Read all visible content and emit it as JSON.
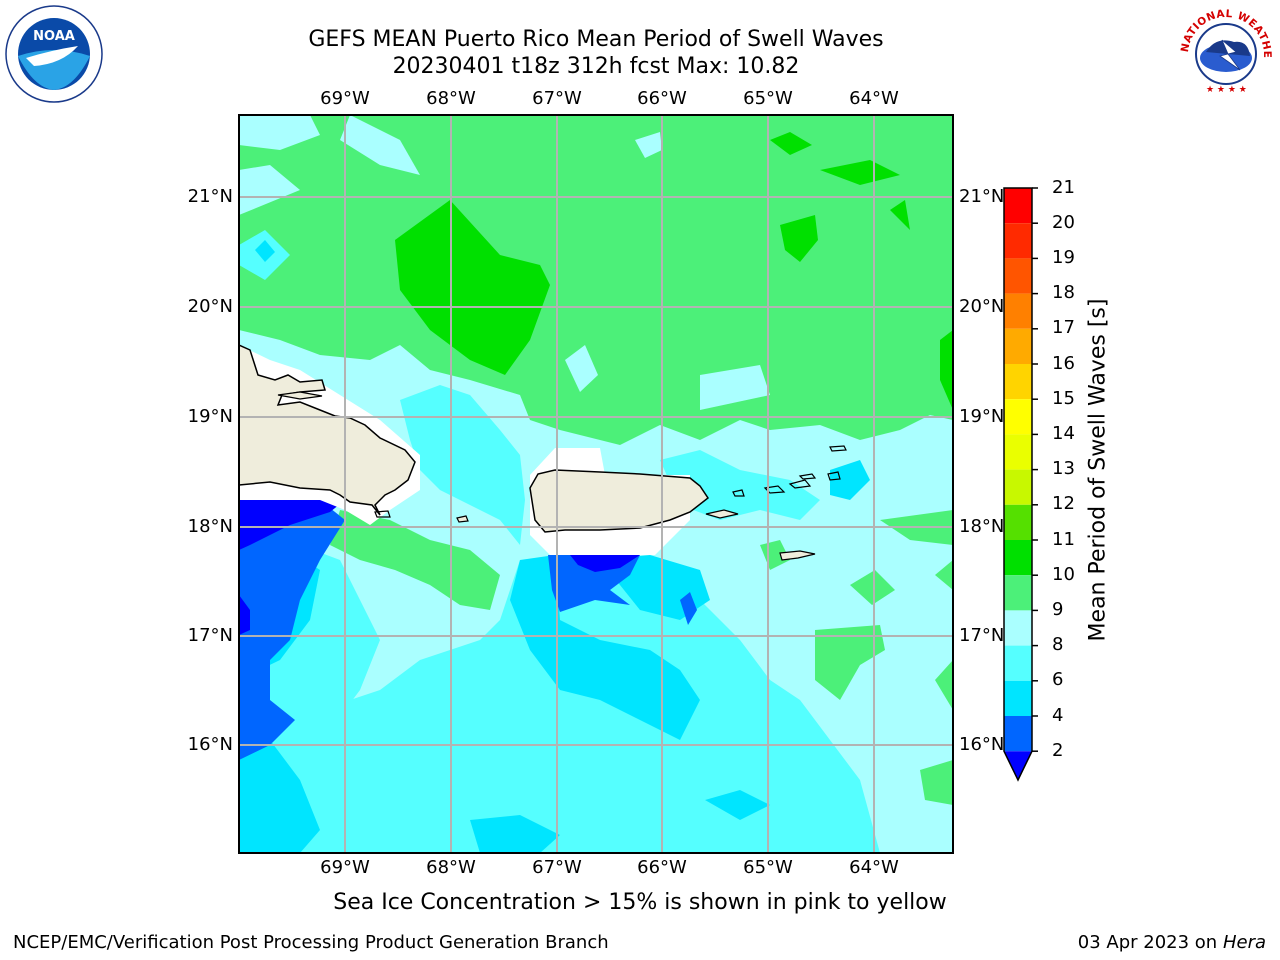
{
  "title_line1": "GEFS MEAN Puerto Rico Mean Period of Swell Waves",
  "title_line2": "20230401 t18z 312h fcst   Max: 10.82",
  "longitude_ticks": [
    "69°W",
    "68°W",
    "67°W",
    "66°W",
    "65°W",
    "64°W"
  ],
  "latitude_ticks": [
    "21°N",
    "20°N",
    "19°N",
    "18°N",
    "17°N",
    "16°N"
  ],
  "colorbar": {
    "label": "Mean Period of Swell Waves [s]",
    "tick_labels": [
      "2",
      "4",
      "6",
      "8",
      "9",
      "10",
      "11",
      "12",
      "13",
      "14",
      "15",
      "16",
      "17",
      "18",
      "19",
      "20",
      "21"
    ],
    "colors": [
      "#0000ff",
      "#0066ff",
      "#00e5ff",
      "#55ffff",
      "#aaffff",
      "#4cf079",
      "#00e000",
      "#3ed31e",
      "#a5ee00",
      "#ccff00",
      "#eeff00",
      "#ffee00",
      "#ffbb00",
      "#ff9900",
      "#ff7000",
      "#ff4000",
      "#ff0000"
    ],
    "extend": "min"
  },
  "note": "Sea Ice Concentration > 15% is shown in pink to yellow",
  "footer_left": "NCEP/EMC/Verification Post Processing Product Generation Branch",
  "footer_right_date": "03 Apr 2023 on ",
  "footer_right_host": "Hera",
  "logos": {
    "left": "NOAA",
    "right": "NATIONAL WEATHER SERVICE"
  }
}
